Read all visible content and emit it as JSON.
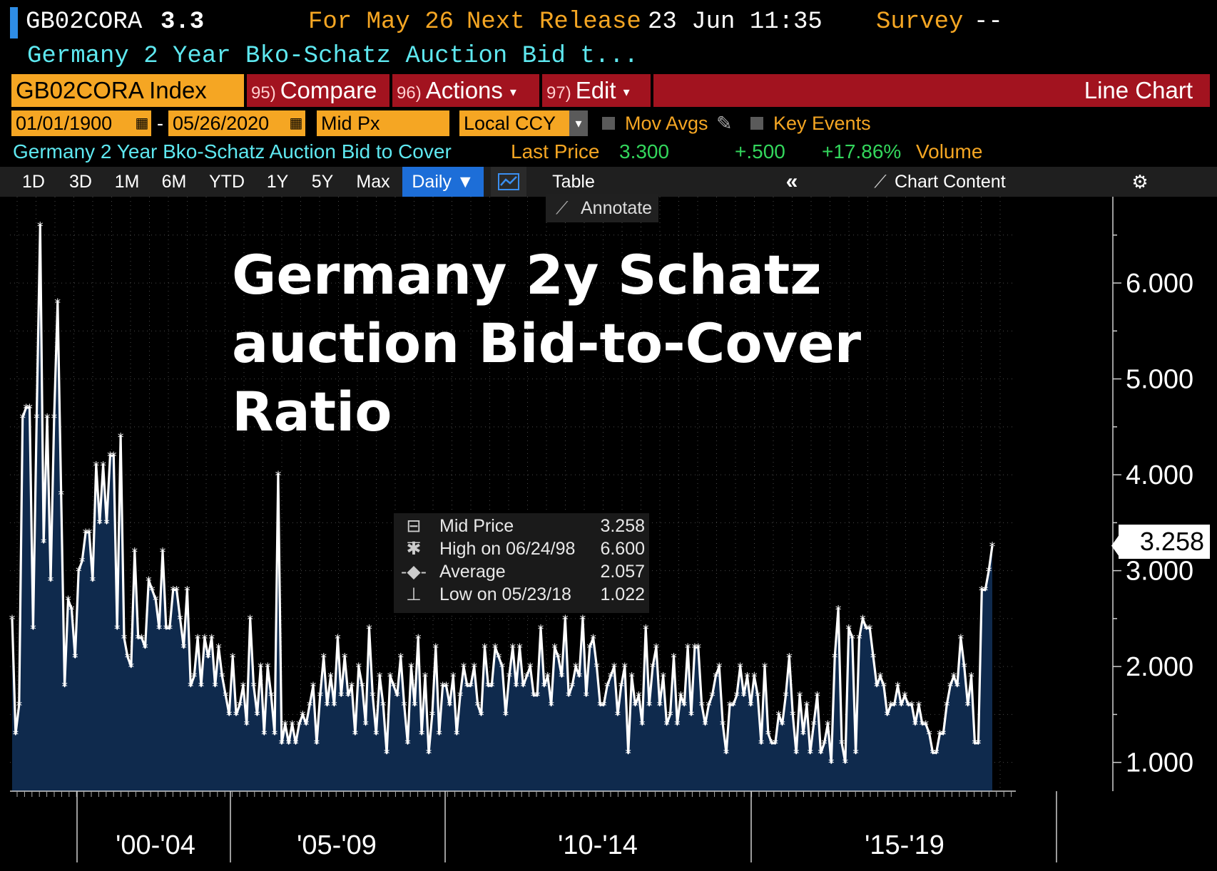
{
  "header": {
    "ticker": "GB02CORA",
    "last": "3.3",
    "for_label": "For May 26",
    "next_release": "Next Release",
    "next_release_value": "23 Jun 11:35",
    "survey": "Survey",
    "survey_value": "--",
    "description": "Germany 2 Year Bko-Schatz Auction Bid t..."
  },
  "menu": {
    "index": "GB02CORA Index",
    "compare_num": "95)",
    "compare": "Compare",
    "actions_num": "96)",
    "actions": "Actions",
    "edit_num": "97)",
    "edit": "Edit",
    "chart_type": "Line Chart"
  },
  "settings": {
    "start_date": "01/01/1900",
    "dash": "-",
    "end_date": "05/26/2020",
    "field": "Mid Px",
    "currency": "Local CCY",
    "mov_avgs": "Mov Avgs",
    "key_events": "Key Events"
  },
  "quote": {
    "name": "Germany 2 Year Bko-Schatz Auction Bid to Cover",
    "last_price_label": "Last Price",
    "last_price": "3.300",
    "change": "+.500",
    "pct_change": "+17.86%",
    "volume_label": "Volume"
  },
  "toolbar": {
    "periods": [
      "1D",
      "3D",
      "1M",
      "6M",
      "YTD",
      "1Y",
      "5Y",
      "Max"
    ],
    "frequency": "Daily ▼",
    "table": "Table",
    "collapse": "«",
    "chart_content": "Chart Content",
    "annotate": "Annotate"
  },
  "legend": {
    "rows": [
      {
        "name": "Mid Price",
        "value": "3.258"
      },
      {
        "name": "High on 06/24/98",
        "value": "6.600"
      },
      {
        "name": "Average",
        "value": "2.057"
      },
      {
        "name": "Low on 05/23/18",
        "value": "1.022"
      }
    ]
  },
  "colors": {
    "background": "#000000",
    "area_fill": "#0f2a4d",
    "line": "#ffffff",
    "menu_red": "#a2131f",
    "field_orange": "#f5a623",
    "text_cyan": "#5ee8f0",
    "text_green": "#33d65c",
    "active_blue": "#1d6ed8"
  },
  "chart_data": {
    "type": "area",
    "title": "Germany 2y Schatz auction Bid-to-Cover Ratio",
    "series": [
      {
        "name": "Mid Price",
        "values": [
          2.5,
          1.3,
          1.6,
          4.6,
          4.7,
          4.7,
          2.4,
          4.6,
          6.6,
          3.3,
          4.6,
          2.9,
          4.6,
          5.8,
          3.8,
          1.8,
          2.7,
          2.6,
          2.1,
          3.0,
          3.1,
          3.4,
          3.4,
          2.9,
          4.1,
          3.5,
          4.1,
          3.5,
          4.2,
          4.2,
          2.4,
          4.4,
          2.3,
          2.1,
          2.0,
          3.2,
          2.3,
          2.3,
          2.2,
          2.9,
          2.8,
          2.7,
          2.4,
          3.2,
          2.4,
          2.4,
          2.8,
          2.8,
          2.5,
          2.2,
          2.8,
          1.8,
          1.9,
          2.3,
          1.8,
          2.3,
          2.1,
          2.3,
          1.8,
          2.2,
          1.9,
          1.7,
          1.5,
          2.1,
          1.5,
          1.6,
          1.8,
          1.4,
          2.5,
          1.8,
          1.5,
          2.0,
          1.3,
          2.0,
          1.7,
          1.3,
          4.0,
          1.2,
          1.4,
          1.2,
          1.4,
          1.2,
          1.4,
          1.5,
          1.4,
          1.6,
          1.8,
          1.2,
          1.7,
          2.1,
          1.6,
          1.9,
          1.6,
          2.3,
          1.7,
          2.1,
          1.7,
          1.8,
          1.3,
          2.0,
          1.8,
          1.4,
          2.4,
          1.7,
          1.3,
          1.9,
          1.6,
          1.1,
          1.9,
          1.8,
          1.7,
          2.1,
          1.6,
          1.2,
          2.0,
          1.6,
          2.3,
          1.3,
          1.9,
          1.1,
          1.5,
          2.2,
          1.3,
          1.8,
          1.8,
          1.6,
          1.9,
          1.3,
          1.7,
          2.0,
          1.8,
          1.8,
          2.0,
          1.6,
          1.5,
          2.2,
          1.8,
          1.8,
          2.2,
          2.1,
          2.0,
          1.5,
          1.9,
          2.2,
          1.8,
          2.2,
          1.8,
          1.9,
          2.0,
          1.7,
          1.7,
          2.4,
          1.8,
          1.9,
          1.6,
          2.2,
          2.1,
          1.9,
          2.5,
          1.7,
          1.8,
          2.0,
          1.9,
          2.5,
          1.7,
          2.2,
          2.3,
          2.0,
          1.6,
          1.6,
          1.8,
          1.9,
          2.0,
          1.5,
          1.8,
          2.0,
          1.1,
          1.9,
          1.6,
          1.7,
          1.4,
          2.4,
          1.6,
          2.0,
          2.2,
          1.6,
          1.9,
          1.4,
          1.5,
          2.1,
          1.4,
          1.7,
          1.6,
          2.2,
          1.5,
          2.2,
          2.2,
          1.6,
          1.4,
          1.6,
          1.7,
          1.9,
          2.0,
          1.4,
          1.1,
          1.6,
          1.6,
          1.7,
          2.0,
          1.7,
          1.9,
          1.6,
          1.9,
          1.7,
          1.2,
          2.0,
          1.3,
          1.2,
          1.2,
          1.5,
          1.4,
          1.7,
          2.1,
          1.5,
          1.1,
          1.7,
          1.3,
          1.6,
          1.1,
          1.4,
          1.7,
          1.1,
          1.2,
          1.4,
          1.0,
          2.1,
          2.6,
          1.2,
          1.0,
          2.4,
          2.3,
          1.1,
          2.3,
          2.5,
          2.4,
          2.4,
          2.1,
          1.8,
          1.9,
          1.8,
          1.5,
          1.6,
          1.6,
          1.8,
          1.6,
          1.7,
          1.6,
          1.6,
          1.4,
          1.6,
          1.4,
          1.4,
          1.3,
          1.1,
          1.1,
          1.3,
          1.3,
          1.6,
          1.8,
          1.9,
          1.8,
          2.3,
          2.0,
          1.6,
          1.9,
          1.2,
          1.2,
          2.8,
          2.8,
          3.0,
          3.26
        ]
      }
    ],
    "x_ticks": [
      "'00-'04",
      "'05-'09",
      "'10-'14",
      "'15-'19"
    ],
    "y_ticks": [
      "1.000",
      "2.000",
      "3.000",
      "4.000",
      "5.000",
      "6.000"
    ],
    "ylim": [
      0.7,
      6.9
    ],
    "last_value_label": "3.258",
    "grid": true,
    "y_axis_side": "right"
  }
}
